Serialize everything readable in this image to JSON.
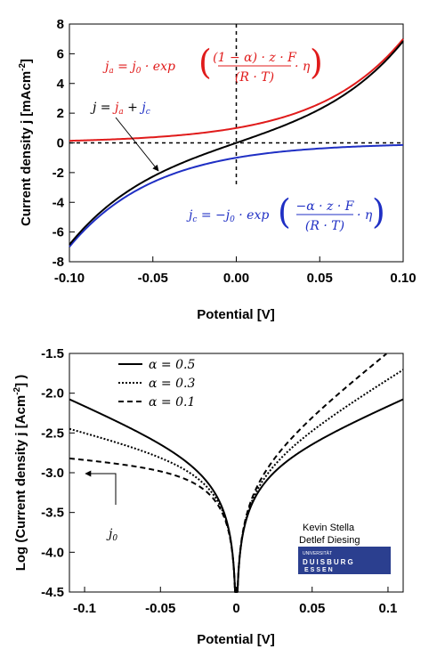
{
  "colors": {
    "anodic": "#e01b1b",
    "cathodic": "#1f2fc4",
    "net": "#000000",
    "logo_bg": "#2b3f8f"
  },
  "chart_data": [
    {
      "type": "line",
      "xlabel": "Potential [V]",
      "ylabel": "Current density j [mAcm-2]",
      "ylabel_main": "Current density j [mAcm",
      "ylabel_exp": "-2",
      "ylabel_close": "]",
      "xlim": [
        -0.1,
        0.1
      ],
      "ylim": [
        -8,
        8
      ],
      "x_ticks": [
        -0.1,
        -0.05,
        0.0,
        0.05,
        0.1
      ],
      "x_tick_labels": [
        "-0.10",
        "-0.05",
        "0.00",
        "0.05",
        "0.10"
      ],
      "y_ticks": [
        8,
        6,
        4,
        2,
        0,
        -2,
        -4,
        -6,
        -8
      ],
      "y_tick_labels": [
        "8",
        "6",
        "4",
        "2",
        "0",
        "-2",
        "-4",
        "-6",
        "-8"
      ],
      "grid": false,
      "parameters": {
        "j0": 1.0,
        "alpha": 0.5,
        "zF_over_RT": 38.9
      },
      "x": [
        -0.1,
        -0.09,
        -0.08,
        -0.07,
        -0.06,
        -0.05,
        -0.04,
        -0.03,
        -0.02,
        -0.01,
        0.0,
        0.01,
        0.02,
        0.03,
        0.04,
        0.05,
        0.06,
        0.07,
        0.08,
        0.09,
        0.1
      ],
      "series": [
        {
          "color": "#e01b1b",
          "values": [
            0.14,
            0.17,
            0.21,
            0.26,
            0.31,
            0.38,
            0.46,
            0.56,
            0.68,
            0.82,
            1.0,
            1.21,
            1.48,
            1.79,
            2.18,
            2.64,
            3.21,
            3.9,
            4.74,
            5.76,
            7.0
          ]
        },
        {
          "color": "#1f2fc4",
          "values": [
            -7.0,
            -5.76,
            -4.74,
            -3.9,
            -3.21,
            -2.64,
            -2.18,
            -1.79,
            -1.48,
            -1.21,
            -1.0,
            -0.82,
            -0.68,
            -0.56,
            -0.46,
            -0.38,
            -0.31,
            -0.26,
            -0.21,
            -0.17,
            -0.14
          ]
        },
        {
          "color": "#000000",
          "values": [
            -6.86,
            -5.59,
            -4.53,
            -3.64,
            -2.9,
            -2.26,
            -1.72,
            -1.23,
            -0.8,
            -0.39,
            0.0,
            0.39,
            0.8,
            1.23,
            1.72,
            2.26,
            2.9,
            3.64,
            4.53,
            5.59,
            6.86
          ]
        }
      ],
      "annotations": {
        "anodic_lhs": "j",
        "anodic_lhs_sub": "a",
        "anodic_mid": " = j",
        "anodic_mid_sub": "0",
        "anodic_exp": " · exp ",
        "anodic_num": "(1 − α) · z · F",
        "anodic_den": "(R · T)",
        "anodic_tail": "· η",
        "sum_lhs": "j = ",
        "sum_a": "j",
        "sum_a_sub": "a",
        "sum_plus": " + ",
        "sum_c": "j",
        "sum_c_sub": "c",
        "cathodic_lhs": "j",
        "cathodic_lhs_sub": "c",
        "cathodic_mid": " = −j",
        "cathodic_mid_sub": "0",
        "cathodic_exp": " · exp ",
        "cathodic_num": "−α · z · F",
        "cathodic_den": "(R · T)",
        "cathodic_tail": "· η"
      }
    },
    {
      "type": "line",
      "xlabel": "Potential [V]",
      "ylabel": "Log (Current density j [Acm-2] )",
      "ylabel_main": "Log (Current density j [Acm",
      "ylabel_exp": "-2",
      "ylabel_close": "] )",
      "xlim": [
        -0.11,
        0.11
      ],
      "ylim": [
        -4.5,
        -1.5
      ],
      "x_ticks": [
        -0.1,
        -0.05,
        0,
        0.05,
        0.1
      ],
      "x_tick_labels": [
        "-0.1",
        "-0.05",
        "0",
        "0.05",
        "0.1"
      ],
      "y_ticks": [
        -1.5,
        -2.0,
        -2.5,
        -3.0,
        -3.5,
        -4.0,
        -4.5
      ],
      "y_tick_labels": [
        "-1.5",
        "-2.0",
        "-2.5",
        "-3.0",
        "-3.5",
        "-4.0",
        "-4.5"
      ],
      "grid": false,
      "legend_position": "top-left",
      "parameters": {
        "log_j0": -3.0,
        "zF_over_RT": 38.9
      },
      "legend": [
        {
          "label": "α = 0.5",
          "dash": "solid"
        },
        {
          "label": "α = 0.3",
          "dash": "dotted"
        },
        {
          "label": "α = 0.1",
          "dash": "dashed"
        }
      ],
      "series": [
        {
          "alpha": 0.5,
          "dash": "solid"
        },
        {
          "alpha": 0.3,
          "dash": "dotted"
        },
        {
          "alpha": 0.1,
          "dash": "dashed"
        }
      ],
      "annotations": {
        "j0_label": "j",
        "j0_sub": "0",
        "j0_level": -3.0
      },
      "credits": {
        "line1": "Kevin Stella",
        "line2": "Detlef Diesing"
      },
      "logo": {
        "top": "UNIVERSITÄT",
        "mid": "DUISBURG",
        "bottom": "ESSEN"
      }
    }
  ]
}
